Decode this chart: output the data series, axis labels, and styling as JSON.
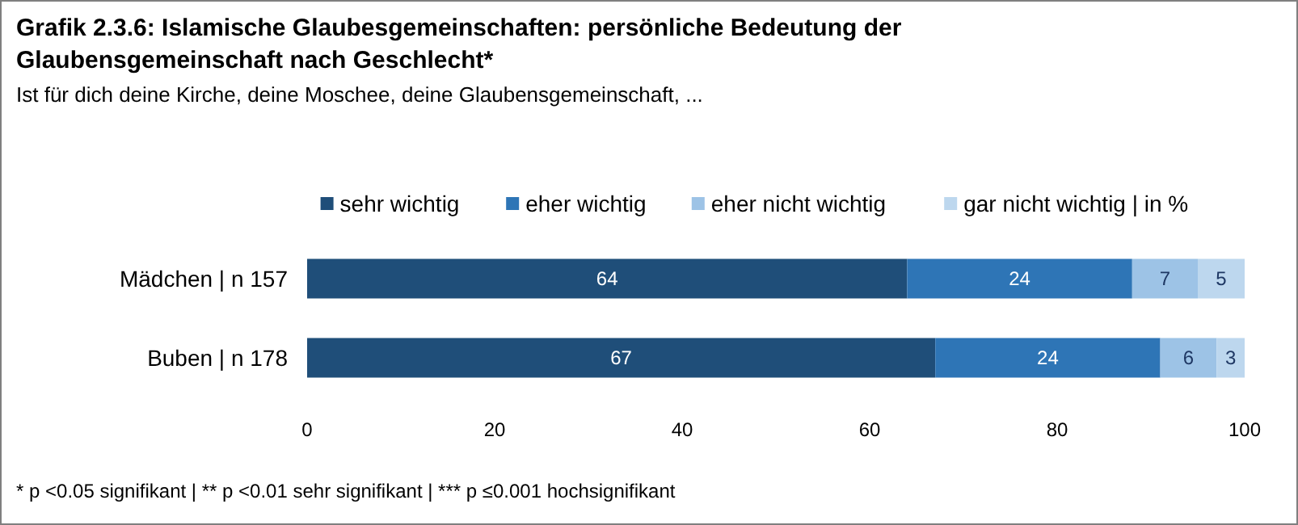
{
  "chart_data": {
    "type": "bar",
    "orientation": "horizontal",
    "stacked": true,
    "title": "Grafik 2.3.6: Islamische Glaubesgemeinschaften: persönliche Bedeutung der Glaubensgemeinschaft nach Geschlecht*",
    "subtitle": "Ist für dich deine Kirche, deine Moschee, deine Glaubensgemeinschaft, ...",
    "categories": [
      "Mädchen | n 157",
      "Buben | n 178"
    ],
    "series": [
      {
        "name": "sehr wichtig",
        "color": "#1f4e79",
        "values": [
          64,
          67
        ]
      },
      {
        "name": "eher wichtig",
        "color": "#2e75b6",
        "values": [
          24,
          24
        ]
      },
      {
        "name": "eher nicht wichtig",
        "color": "#9dc3e6",
        "values": [
          7,
          6
        ]
      },
      {
        "name": "gar nicht wichtig | in %",
        "color": "#bdd7ee",
        "values": [
          5,
          3
        ]
      }
    ],
    "xlim": [
      0,
      100
    ],
    "xticks": [
      0,
      20,
      40,
      60,
      80,
      100
    ],
    "legend": "top",
    "data_labels": true,
    "annotations": [
      "* p <0.05 signifikant  | ** p <0.01 sehr signifikant | *** p ≤0.001 hochsignifikant"
    ]
  }
}
